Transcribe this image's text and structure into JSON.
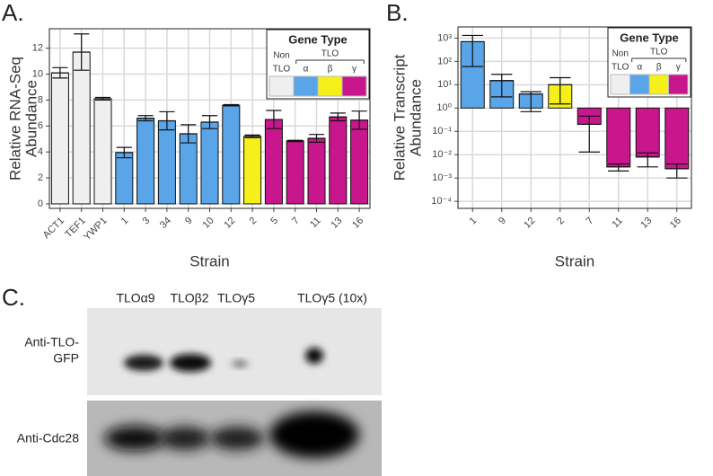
{
  "chart_data": [
    {
      "type": "bar",
      "panel": "A.",
      "ylabel": [
        "Relative RNA-Seq",
        "Abundance"
      ],
      "xlabel": "Strain",
      "categories": [
        "ACT1",
        "TEF1",
        "YWP1",
        "1",
        "3",
        "34",
        "9",
        "10",
        "12",
        "2",
        "5",
        "7",
        "11",
        "13",
        "16"
      ],
      "values": [
        10.1,
        11.7,
        8.1,
        3.95,
        6.6,
        6.4,
        5.4,
        6.3,
        7.6,
        5.2,
        6.5,
        4.85,
        5.05,
        6.7,
        6.45
      ],
      "errors": [
        0.4,
        1.4,
        0.1,
        0.4,
        0.2,
        0.7,
        0.7,
        0.5,
        0.05,
        0.1,
        0.7,
        0.05,
        0.3,
        0.3,
        0.7
      ],
      "colors": [
        "#efefef",
        "#efefef",
        "#efefef",
        "#5aa5e8",
        "#5aa5e8",
        "#5aa5e8",
        "#5aa5e8",
        "#5aa5e8",
        "#5aa5e8",
        "#f5ef1a",
        "#c8168c",
        "#c8168c",
        "#c8168c",
        "#c8168c",
        "#c8168c"
      ],
      "ylim": [
        -0.35,
        13.5
      ],
      "yticks": [
        0,
        2,
        4,
        6,
        8,
        10,
        12
      ],
      "grid": true,
      "log": false,
      "legend": {
        "title": "Gene Type",
        "group_label": "TLO",
        "entries": [
          {
            "label": [
              "Non",
              "TLO"
            ],
            "color": "#efefef"
          },
          {
            "label": "α",
            "color": "#5aa5e8"
          },
          {
            "label": "β",
            "color": "#f5ef1a"
          },
          {
            "label": "γ",
            "color": "#c8168c"
          }
        ]
      }
    },
    {
      "type": "bar",
      "panel": "B.",
      "ylabel": [
        "Relative Transcript",
        "Abundance"
      ],
      "xlabel": "Strain",
      "categories": [
        "1",
        "9",
        "12",
        "2",
        "7",
        "11",
        "13",
        "16"
      ],
      "values": [
        700,
        15,
        4,
        10,
        0.2,
        0.003,
        0.008,
        0.0025
      ],
      "err_low": [
        60,
        3,
        0.7,
        1.5,
        0.013,
        0.002,
        0.003,
        0.001
      ],
      "err_high": [
        1300,
        28,
        5,
        20,
        0.45,
        0.004,
        0.012,
        0.004
      ],
      "colors": [
        "#5aa5e8",
        "#5aa5e8",
        "#5aa5e8",
        "#f5ef1a",
        "#c8168c",
        "#c8168c",
        "#c8168c",
        "#c8168c"
      ],
      "ylim": [
        5e-05,
        3000
      ],
      "log": true,
      "grid": true,
      "yticks": [
        {
          "value": 1000,
          "label": "10³"
        },
        {
          "value": 100,
          "label": "10²"
        },
        {
          "value": 10,
          "label": "10¹"
        },
        {
          "value": 1,
          "label": "10⁰"
        },
        {
          "value": 0.1,
          "label": "10⁻¹"
        },
        {
          "value": 0.01,
          "label": "10⁻²"
        },
        {
          "value": 0.001,
          "label": "10⁻³"
        },
        {
          "value": 0.0001,
          "label": "10⁻⁴"
        }
      ],
      "legend": {
        "title": "Gene Type",
        "group_label": "TLO",
        "entries": [
          {
            "label": [
              "Non",
              "TLO"
            ],
            "color": "#efefef"
          },
          {
            "label": "α",
            "color": "#5aa5e8"
          },
          {
            "label": "β",
            "color": "#f5ef1a"
          },
          {
            "label": "γ",
            "color": "#c8168c"
          }
        ]
      }
    }
  ],
  "blot": {
    "panel": "C.",
    "lanes": [
      "TLOα9",
      "TLOβ2",
      "TLOγ5",
      "TLOγ5 (10x)"
    ],
    "rows": [
      [
        "Anti-TLO-",
        "GFP"
      ],
      "Anti-Cdc28"
    ]
  }
}
